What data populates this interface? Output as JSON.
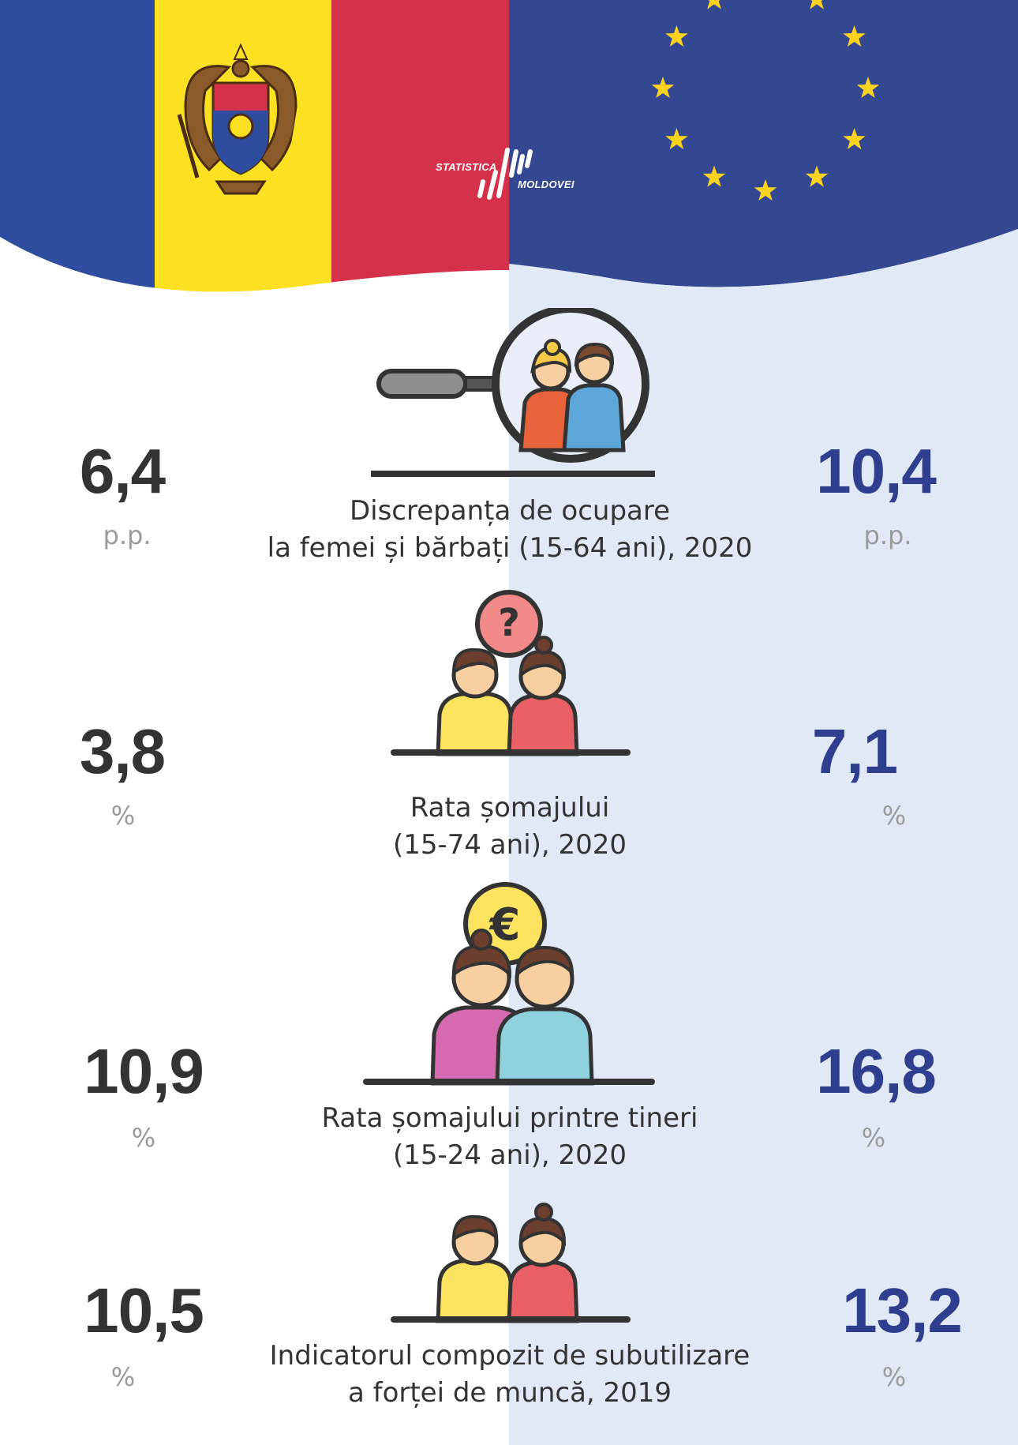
{
  "logo": {
    "line1": "STATISTICA",
    "line2": "MOLDOVEI"
  },
  "colors": {
    "md_blue": "#2f4d9e",
    "md_yellow": "#fbe122",
    "md_red": "#d5314a",
    "eu_blue": "#344892",
    "eu_star": "#fbd31e",
    "value_md": "#333333",
    "value_eu": "#2e3f8f",
    "unit_grey": "#9a9a9a",
    "right_panel": "#e1e9f6"
  },
  "rows": [
    {
      "icon": "magnifier-couple-icon",
      "md_value": "6,4",
      "md_unit": "p.p.",
      "eu_value": "10,4",
      "eu_unit": "p.p.",
      "caption_line1": "Discrepanța de ocupare",
      "caption_line2": "la femei și bărbați (15-64 ani), 2020"
    },
    {
      "icon": "question-couple-icon",
      "md_value": "3,8",
      "md_unit": "%",
      "eu_value": "7,1",
      "eu_unit": "%",
      "caption_line1": "Rata șomajului",
      "caption_line2": "(15-74 ani), 2020"
    },
    {
      "icon": "euro-youth-icon",
      "md_value": "10,9",
      "md_unit": "%",
      "eu_value": "16,8",
      "eu_unit": "%",
      "caption_line1": "Rata șomajului printre tineri",
      "caption_line2": "(15-24 ani), 2020"
    },
    {
      "icon": "sad-couple-icon",
      "md_value": "10,5",
      "md_unit": "%",
      "eu_value": "13,2",
      "eu_unit": "%",
      "caption_line1": "Indicatorul compozit de subutilizare",
      "caption_line2": "a forței de muncă, 2019"
    }
  ]
}
